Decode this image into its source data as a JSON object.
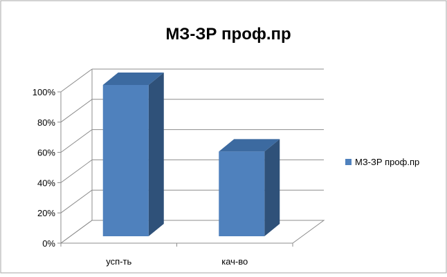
{
  "chart_data": {
    "type": "bar",
    "title": "МЗ-ЗР проф.пр",
    "categories": [
      "усп-ть",
      "кач-во"
    ],
    "series": [
      {
        "name": "МЗ-ЗР проф.пр",
        "values": [
          100,
          56
        ]
      }
    ],
    "y_tick_labels": [
      "0%",
      "20%",
      "40%",
      "60%",
      "80%",
      "100%"
    ],
    "ylim": [
      0,
      100
    ],
    "unit": "%",
    "grid": true,
    "legend_position": "right",
    "style": "3d-column",
    "colors": {
      "bar_front": "#4F81BD",
      "bar_side": "#2F5179",
      "bar_top": "#3C6AA0",
      "grid": "#8C8C8C",
      "border": "#A6A6A6",
      "text": "#000000"
    }
  }
}
